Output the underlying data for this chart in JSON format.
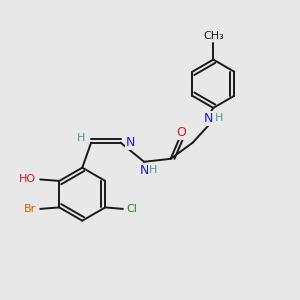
{
  "bg_color": "#e8e8e8",
  "bond_color": "#1a1a1a",
  "atom_colors": {
    "N": "#1a1acc",
    "O": "#cc1a1a",
    "Br": "#cc6600",
    "Cl": "#228822",
    "C": "#1a1a1a",
    "H": "#4a9a9a"
  },
  "font_size": 9,
  "figsize": [
    3.0,
    3.0
  ],
  "dpi": 100
}
